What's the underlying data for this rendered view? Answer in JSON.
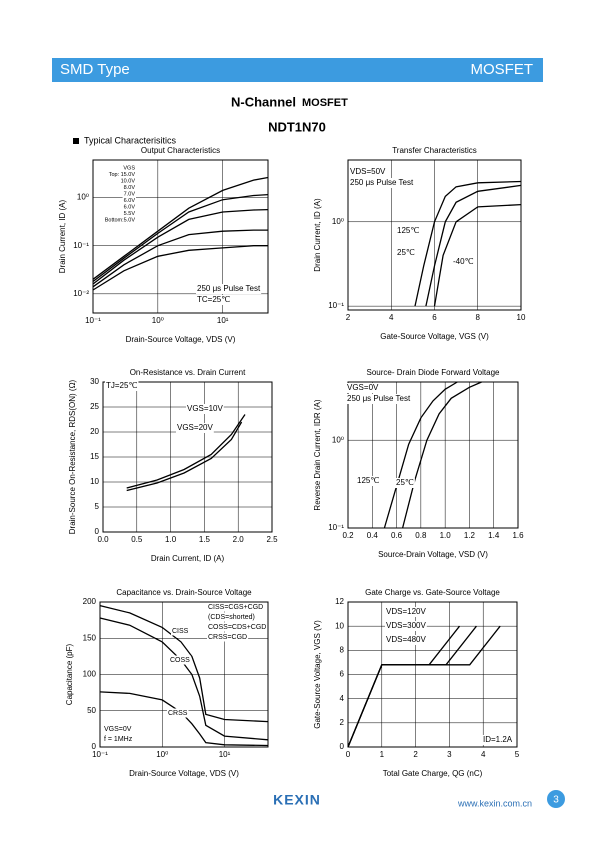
{
  "header": {
    "left": "SMD Type",
    "right": "MOSFET"
  },
  "title": {
    "main": "N-Channel",
    "sub": "MOSFET",
    "part": "NDT1N70"
  },
  "section": "Typical Characterisitics",
  "footer": {
    "logo": "KEXIN",
    "url": "www.kexin.com.cn",
    "page": "3"
  },
  "chart_data": [
    {
      "type": "line",
      "title": "Output Characteristics",
      "x_label": "Drain-Source Voltage, VDS (V)",
      "y_label": "Drain Current, ID (A)",
      "xlog": true,
      "ylog": true,
      "grid": true,
      "xlim": [
        0.1,
        50
      ],
      "ylim": [
        0.004,
        6
      ],
      "xticks": [
        {
          "value": 0.1,
          "label": "10⁻¹"
        },
        {
          "value": 1,
          "label": "10⁰"
        },
        {
          "value": 10,
          "label": "10¹"
        }
      ],
      "yticks": [
        {
          "value": 0.01,
          "label": "10⁻²"
        },
        {
          "value": 0.1,
          "label": "10⁻¹"
        },
        {
          "value": 1,
          "label": "10⁰"
        }
      ],
      "annotations": [
        "VGS",
        "Top: 15.0V",
        "10.0V",
        "8.0V",
        "7.0V",
        "6.0V",
        "6.0V",
        "5.5V",
        "Bottom:5.0V",
        "250 μs Pulse Test",
        "TC=25℃"
      ],
      "series": [
        {
          "color": "#000000",
          "x": [
            0.1,
            0.3,
            1,
            3,
            10,
            30,
            50
          ],
          "values": [
            0.02,
            0.06,
            0.2,
            0.6,
            1.4,
            2.3,
            2.6
          ]
        },
        {
          "color": "#000000",
          "x": [
            0.1,
            0.3,
            1,
            3,
            10,
            30,
            50
          ],
          "values": [
            0.018,
            0.055,
            0.18,
            0.5,
            0.9,
            1.1,
            1.15
          ]
        },
        {
          "color": "#000000",
          "x": [
            0.1,
            0.3,
            1,
            3,
            10,
            30,
            50
          ],
          "values": [
            0.016,
            0.05,
            0.15,
            0.35,
            0.5,
            0.55,
            0.56
          ]
        },
        {
          "color": "#000000",
          "x": [
            0.1,
            0.3,
            1,
            3,
            10,
            30,
            50
          ],
          "values": [
            0.014,
            0.04,
            0.1,
            0.17,
            0.2,
            0.21,
            0.21
          ]
        },
        {
          "color": "#000000",
          "x": [
            0.1,
            0.3,
            1,
            3,
            10,
            30,
            50
          ],
          "values": [
            0.012,
            0.03,
            0.06,
            0.08,
            0.09,
            0.1,
            0.1
          ]
        }
      ]
    },
    {
      "type": "line",
      "title": "Transfer Characteristics",
      "x_label": "Gate-Source Voltage, VGS (V)",
      "y_label": "Drain Current, ID (A)",
      "ylog": true,
      "grid": true,
      "xlim": [
        2,
        10
      ],
      "ylim": [
        0.09,
        5.4
      ],
      "xticks": [
        2,
        4,
        6,
        8,
        10
      ],
      "yticks": [
        {
          "value": 0.1,
          "label": "10⁻¹"
        },
        {
          "value": 1,
          "label": "10⁰"
        }
      ],
      "annotations": [
        "VDS=50V",
        "250 μs Pulse Test",
        "125℃",
        "25℃",
        "-40℃"
      ],
      "series": [
        {
          "color": "#000000",
          "x": [
            5.1,
            5.5,
            6,
            6.5,
            7,
            8,
            10
          ],
          "values": [
            0.1,
            0.3,
            1,
            2,
            2.6,
            2.9,
            3
          ]
        },
        {
          "color": "#000000",
          "x": [
            5.6,
            6,
            6.5,
            7,
            8,
            10
          ],
          "values": [
            0.1,
            0.3,
            1,
            1.7,
            2.3,
            2.7
          ]
        },
        {
          "color": "#000000",
          "x": [
            6,
            6.4,
            7,
            8,
            10
          ],
          "values": [
            0.1,
            0.4,
            1,
            1.5,
            1.6
          ]
        }
      ]
    },
    {
      "type": "line",
      "title": "On-Resistance  vs. Drain Current",
      "x_label": "Drain Current, ID (A)",
      "y_label": "Drain-Source On-Resistance, RDS(ON) (Ω)",
      "grid": true,
      "xlim": [
        0,
        2.5
      ],
      "ylim": [
        0,
        30
      ],
      "xticks": [
        {
          "value": 0,
          "label": "0.0"
        },
        0.5,
        {
          "value": 1,
          "label": "1.0"
        },
        1.5,
        {
          "value": 2,
          "label": "2.0"
        },
        2.5
      ],
      "yticks": [
        0,
        5,
        10,
        15,
        20,
        25,
        30
      ],
      "annotations": [
        "TJ=25℃",
        "VGS=10V",
        "VGS=20V"
      ],
      "series": [
        {
          "color": "#000000",
          "x": [
            0.35,
            0.8,
            1.2,
            1.6,
            1.9,
            2.1
          ],
          "values": [
            8.8,
            10.4,
            12.5,
            15.5,
            19.5,
            23.5
          ]
        },
        {
          "color": "#000000",
          "x": [
            0.35,
            0.8,
            1.2,
            1.6,
            1.9,
            2.05
          ],
          "values": [
            8.3,
            9.8,
            11.8,
            14.7,
            18.5,
            22
          ]
        }
      ]
    },
    {
      "type": "line",
      "title": "Source- Drain Diode Forward Voltage",
      "x_label": "Source-Drain Voltage, VSD (V)",
      "y_label": "Reverse Drain Current, IDR (A)",
      "ylog": true,
      "grid": true,
      "xlim": [
        0.2,
        1.6
      ],
      "ylim": [
        0.1,
        4.6
      ],
      "xticks": [
        0.2,
        0.4,
        0.6,
        0.8,
        {
          "value": 1,
          "label": "1.0"
        },
        1.2,
        1.4,
        1.6
      ],
      "yticks": [
        {
          "value": 0.1,
          "label": "10⁻¹"
        },
        {
          "value": 1,
          "label": "10⁰"
        }
      ],
      "annotations": [
        "VGS=0V",
        "250 μs Pulse Test",
        "125℃",
        "25℃"
      ],
      "series": [
        {
          "color": "#000000",
          "x": [
            0.5,
            0.6,
            0.7,
            0.8,
            0.9,
            1.0,
            1.1
          ],
          "values": [
            0.1,
            0.3,
            0.9,
            1.8,
            2.8,
            3.8,
            4.6
          ]
        },
        {
          "color": "#000000",
          "x": [
            0.65,
            0.75,
            0.85,
            0.95,
            1.05,
            1.2,
            1.3
          ],
          "values": [
            0.1,
            0.35,
            1,
            2,
            3,
            4,
            4.6
          ]
        }
      ]
    },
    {
      "type": "line",
      "title": "Capacitance vs. Drain-Source  Voltage",
      "x_label": "Drain-Source Voltage, VDS (V)",
      "y_label": "Capacitance (pF)",
      "xlog": true,
      "grid": true,
      "xlim": [
        0.1,
        50
      ],
      "ylim": [
        0,
        200
      ],
      "xticks": [
        {
          "value": 0.1,
          "label": "10⁻¹"
        },
        {
          "value": 1,
          "label": "10⁰"
        },
        {
          "value": 10,
          "label": "10¹"
        }
      ],
      "yticks": [
        0,
        50,
        100,
        150,
        200
      ],
      "annotations": [
        "CISS=CGS+CGD",
        "(CDS=shorted)",
        "COSS=CDS+CGD",
        "CRSS=CGD",
        "CISS",
        "COSS",
        "CRSS",
        "VGS=0V",
        "f = 1MHz"
      ],
      "series": [
        {
          "color": "#000000",
          "x": [
            0.1,
            0.3,
            1,
            2,
            3,
            4,
            5,
            10,
            50
          ],
          "values": [
            195,
            185,
            165,
            145,
            125,
            95,
            45,
            38,
            35
          ]
        },
        {
          "color": "#000000",
          "x": [
            0.1,
            0.3,
            1,
            2,
            3,
            4,
            5,
            10,
            50
          ],
          "values": [
            178,
            168,
            145,
            120,
            100,
            70,
            30,
            15,
            10
          ]
        },
        {
          "color": "#000000",
          "x": [
            0.1,
            0.3,
            1,
            2,
            3,
            4,
            5,
            10,
            50
          ],
          "values": [
            76,
            74,
            65,
            48,
            32,
            18,
            6,
            3,
            2
          ]
        }
      ]
    },
    {
      "type": "line",
      "title": "Gate Charge vs. Gate-Source  Voltage",
      "x_label": "Total Gate Charge, QG (nC)",
      "y_label": "Gate-Source Voltage, VGS (V)",
      "grid": true,
      "xlim": [
        0,
        5
      ],
      "ylim": [
        0,
        12
      ],
      "xticks": [
        0,
        1,
        2,
        3,
        4,
        5
      ],
      "yticks": [
        0,
        2,
        4,
        6,
        8,
        10,
        12
      ],
      "annotations": [
        "VDS=120V",
        "VDS=300V",
        "VDS=480V",
        "ID=1.2A"
      ],
      "series": [
        {
          "color": "#000000",
          "x": [
            0,
            1,
            2.4,
            3.3
          ],
          "values": [
            0,
            6.8,
            6.8,
            10
          ]
        },
        {
          "color": "#000000",
          "x": [
            0,
            1,
            2.9,
            3.8
          ],
          "values": [
            0,
            6.8,
            6.8,
            10
          ]
        },
        {
          "color": "#000000",
          "x": [
            0,
            1,
            3.6,
            4.5
          ],
          "values": [
            0,
            6.8,
            6.8,
            10
          ]
        }
      ]
    }
  ]
}
